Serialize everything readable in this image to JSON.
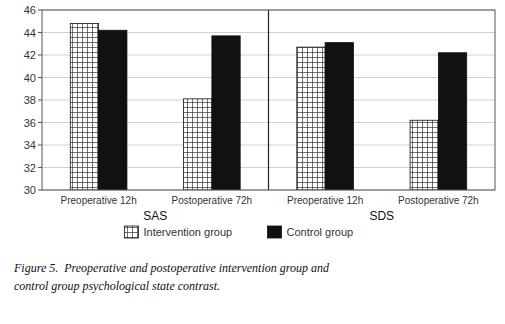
{
  "chart_data": {
    "type": "bar",
    "categories": [
      "Preoperative 12h",
      "Postoperative 72h",
      "Preoperative 12h",
      "Postoperative 72h"
    ],
    "series": [
      {
        "name": "Intervention group",
        "color": "#ffffff",
        "values": [
          44.8,
          38.1,
          42.7,
          36.2
        ]
      },
      {
        "name": "Control group",
        "color": "#111111",
        "values": [
          44.2,
          43.7,
          43.1,
          42.2
        ]
      }
    ],
    "ylim": [
      30,
      46
    ],
    "yticks": [
      30,
      32,
      34,
      36,
      38,
      40,
      42,
      44,
      46
    ],
    "grid": true,
    "legend": "bottom",
    "annotations": [
      {
        "text": "SAS",
        "categories": [
          0,
          1
        ]
      },
      {
        "text": "SDS",
        "categories": [
          2,
          3
        ]
      }
    ],
    "caption": [
      "Figure 5.  Preoperative and postoperative intervention group and",
      "control group psychological state contrast."
    ]
  }
}
